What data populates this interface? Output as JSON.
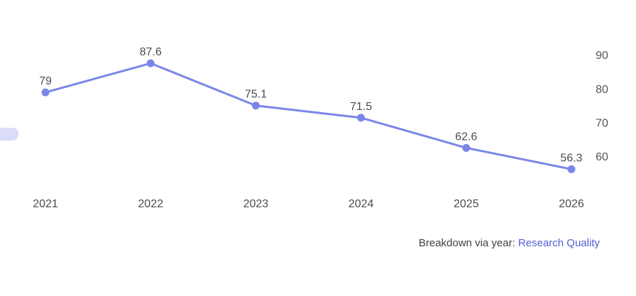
{
  "chart_data": {
    "type": "line",
    "title": "",
    "categories": [
      "2021",
      "2022",
      "2023",
      "2024",
      "2025",
      "2026"
    ],
    "series": [
      {
        "name": "Research Quality",
        "values": [
          79,
          87.6,
          75.1,
          71.5,
          62.6,
          56.3
        ]
      }
    ],
    "data_labels": [
      "79",
      "87.6",
      "75.1",
      "71.5",
      "62.6",
      "56.3"
    ],
    "xlabel": "",
    "ylabel": "",
    "y_axis": {
      "side": "right",
      "tick_labels": [
        "90",
        "80",
        "70",
        "60"
      ],
      "tick_values": [
        90,
        80,
        70,
        60
      ]
    },
    "grid": false,
    "legend_position": "none",
    "colors": {
      "line": "#7b86e8",
      "marker": "#7b86e8",
      "data_label_text": "#4c4c4c",
      "axis_tick_text": "#555555",
      "category_text": "#4c4c4c"
    }
  },
  "footer": {
    "prefix": "Breakdown via year: ",
    "link_label": "Research Quality",
    "text_color": "#3f3f3f",
    "link_color": "#4f60d4"
  },
  "decor": {
    "left_pill_color": "#dbddf8"
  }
}
